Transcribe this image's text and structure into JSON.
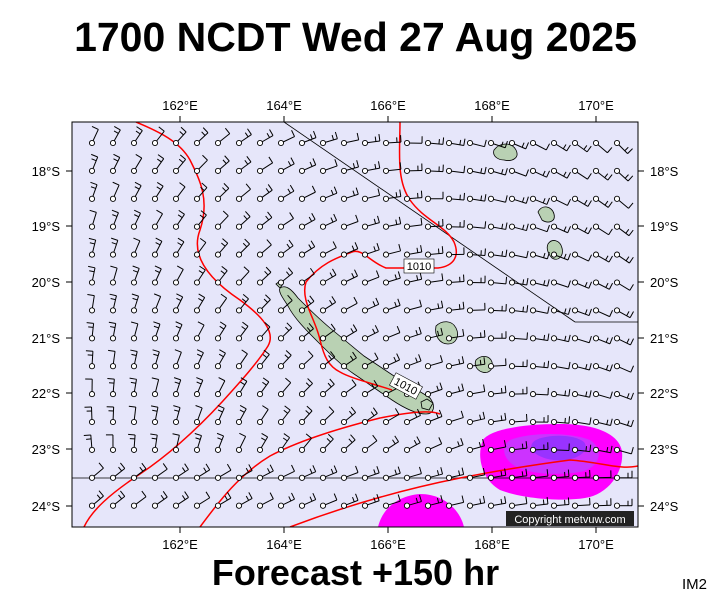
{
  "title": "1700 NCDT Wed 27 Aug 2025",
  "footer": "Forecast +150 hr",
  "corner_label": "IM2",
  "copyright": "Copyright metvuw.com",
  "isobar_labels": [
    "1010",
    "1010"
  ],
  "colors": {
    "ocean": "#e6e6fa",
    "isobar": "#ff0000",
    "rain_light": "#ff00ff",
    "rain_moderate": "#cc33ff",
    "rain_heavy": "#9933ff",
    "land": "#b9d1b3"
  },
  "axes": {
    "lon_ticks": [
      "162°E",
      "164°E",
      "166°E",
      "168°E",
      "170°E"
    ],
    "lat_ticks": [
      "18°S",
      "19°S",
      "20°S",
      "21°S",
      "22°S",
      "23°S",
      "24°S"
    ]
  }
}
